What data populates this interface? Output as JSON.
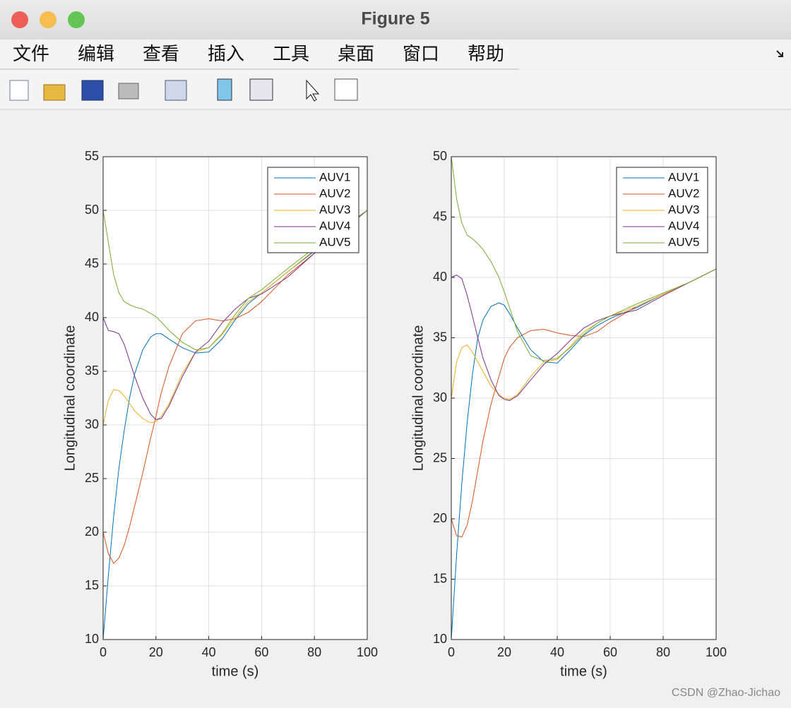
{
  "window": {
    "title": "Figure 5"
  },
  "menu": [
    "文件",
    "编辑",
    "查看",
    "插入",
    "工具",
    "桌面",
    "窗口",
    "帮助"
  ],
  "watermark": "CSDN @Zhao-Jichao",
  "chart_data": [
    {
      "type": "line",
      "xlabel": "time (s)",
      "ylabel": "Longitudinal coordinate",
      "x": [
        0,
        2,
        4,
        6,
        8,
        10,
        12,
        15,
        18,
        20,
        22,
        25,
        30,
        35,
        40,
        45,
        50,
        55,
        60,
        70,
        80,
        90,
        100
      ],
      "series": [
        {
          "name": "AUV1",
          "color": "#0072bd",
          "values": [
            10,
            16,
            21.5,
            26,
            29.5,
            32.5,
            34.8,
            37,
            38.2,
            38.5,
            38.5,
            38,
            37.2,
            36.7,
            36.8,
            38,
            39.8,
            41.3,
            42.3,
            44.3,
            46.2,
            48.2,
            50
          ]
        },
        {
          "name": "AUV2",
          "color": "#d95319",
          "values": [
            20,
            18,
            17.1,
            17.6,
            18.8,
            20.5,
            22.5,
            25.5,
            28.8,
            30.8,
            33,
            35.5,
            38.5,
            39.7,
            39.9,
            39.7,
            39.9,
            40.5,
            41.5,
            44,
            46,
            48,
            50
          ]
        },
        {
          "name": "AUV3",
          "color": "#edb120",
          "values": [
            30,
            32.3,
            33.3,
            33.2,
            32.7,
            32,
            31.3,
            30.6,
            30.2,
            30.3,
            30.8,
            32,
            34.8,
            36.8,
            37.2,
            38.4,
            40,
            41.5,
            42.3,
            44.3,
            46.3,
            48.2,
            50
          ]
        },
        {
          "name": "AUV4",
          "color": "#7e2f8e",
          "values": [
            40,
            38.8,
            38.7,
            38.5,
            37.5,
            36,
            34.5,
            32.5,
            31,
            30.5,
            30.6,
            31.8,
            34.5,
            36.8,
            37.8,
            39.5,
            40.8,
            41.8,
            42.2,
            43.8,
            46,
            48,
            50
          ]
        },
        {
          "name": "AUV5",
          "color": "#77ac30",
          "values": [
            50,
            47,
            44,
            42.3,
            41.5,
            41.2,
            41,
            40.8,
            40.4,
            40.1,
            39.6,
            38.8,
            37.7,
            37,
            37.2,
            38.5,
            40.3,
            41.8,
            42.6,
            44.6,
            46.5,
            48.3,
            50
          ]
        }
      ],
      "xlim": [
        0,
        100
      ],
      "ylim": [
        10,
        55
      ],
      "xticks": [
        0,
        20,
        40,
        60,
        80,
        100
      ],
      "yticks": [
        10,
        15,
        20,
        25,
        30,
        35,
        40,
        45,
        50,
        55
      ],
      "grid": true,
      "legend": "northeast"
    },
    {
      "type": "line",
      "xlabel": "time (s)",
      "ylabel": "Longitudinal coordinate",
      "x": [
        0,
        2,
        4,
        6,
        8,
        10,
        12,
        15,
        18,
        20,
        22,
        25,
        30,
        35,
        40,
        45,
        50,
        55,
        60,
        70,
        80,
        90,
        100
      ],
      "series": [
        {
          "name": "AUV1",
          "color": "#0072bd",
          "values": [
            10,
            17,
            23,
            28,
            32,
            35,
            36.5,
            37.6,
            37.9,
            37.7,
            37,
            35.8,
            34,
            33,
            32.9,
            34,
            35.2,
            36,
            36.6,
            37.5,
            38.6,
            39.6,
            40.7
          ]
        },
        {
          "name": "AUV2",
          "color": "#d95319",
          "values": [
            20,
            18.6,
            18.5,
            19.5,
            21.5,
            24,
            26.5,
            29.5,
            31.8,
            33.3,
            34.2,
            35,
            35.6,
            35.7,
            35.4,
            35.2,
            35.1,
            35.5,
            36.3,
            37.6,
            38.6,
            39.6,
            40.7
          ]
        },
        {
          "name": "AUV3",
          "color": "#edb120",
          "values": [
            30,
            33,
            34.2,
            34.4,
            33.8,
            33,
            32.2,
            31,
            30.3,
            30,
            29.9,
            30.3,
            31.8,
            33,
            33.2,
            34.3,
            35.5,
            36.2,
            36.8,
            37.6,
            38.6,
            39.6,
            40.7
          ]
        },
        {
          "name": "AUV4",
          "color": "#7e2f8e",
          "values": [
            40,
            40.2,
            39.9,
            38.5,
            36.8,
            35,
            33.3,
            31.5,
            30.2,
            29.9,
            29.8,
            30.2,
            31.5,
            32.8,
            33.7,
            34.8,
            35.8,
            36.4,
            36.8,
            37.3,
            38.5,
            39.6,
            40.7
          ]
        },
        {
          "name": "AUV5",
          "color": "#77ac30",
          "values": [
            50,
            46.5,
            44.5,
            43.5,
            43.2,
            42.8,
            42.3,
            41.3,
            40,
            38.8,
            37.5,
            35.5,
            33.5,
            33.1,
            33.3,
            34.2,
            35.3,
            36.2,
            36.8,
            37.8,
            38.7,
            39.6,
            40.7
          ]
        }
      ],
      "xlim": [
        0,
        100
      ],
      "ylim": [
        10,
        50
      ],
      "xticks": [
        0,
        20,
        40,
        60,
        80,
        100
      ],
      "yticks": [
        10,
        15,
        20,
        25,
        30,
        35,
        40,
        45,
        50
      ],
      "grid": true,
      "legend": "northeast"
    }
  ]
}
